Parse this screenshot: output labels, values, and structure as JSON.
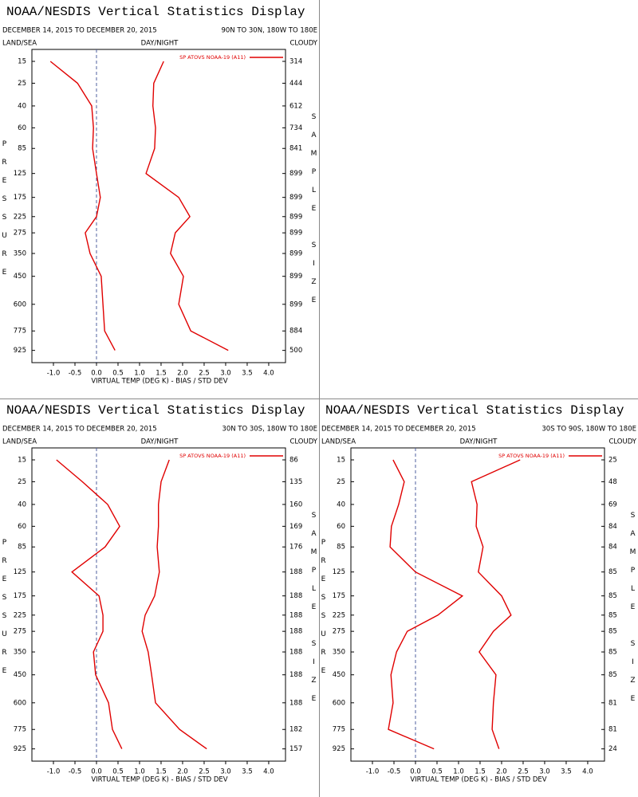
{
  "chart_data": [
    {
      "type": "line",
      "title": "NOAA/NESDIS Vertical Statistics Display",
      "subtitle": "DECEMBER 14, 2015 TO DECEMBER 20, 2015",
      "region": "90N TO 30N, 180W TO 180E",
      "header_left": "LAND/SEA",
      "header_center": "DAY/NIGHT",
      "header_right": "CLOUDY",
      "y_label": "PRESSURE",
      "y2_label": "SAMPLE SIZE",
      "x_label": "VIRTUAL TEMP (DEG K) - BIAS / STD DEV",
      "legend_label": "SP ATOVS NOAA-19 (A11)",
      "y": [
        15,
        25,
        40,
        60,
        85,
        125,
        175,
        225,
        275,
        350,
        450,
        600,
        775,
        925
      ],
      "ylim": [
        1030,
        11
      ],
      "sample_size": [
        314,
        444,
        612,
        734,
        841,
        899,
        899,
        899,
        899,
        899,
        899,
        899,
        884,
        500
      ],
      "series": [
        {
          "color": "#e00000",
          "values": [
            -1.07,
            -0.44,
            -0.11,
            -0.07,
            -0.09,
            0.0,
            0.09,
            0.0,
            -0.26,
            -0.15,
            0.11,
            0.15,
            0.19,
            0.43
          ]
        },
        {
          "color": "#e00000",
          "values": [
            1.56,
            1.33,
            1.31,
            1.37,
            1.35,
            1.15,
            1.91,
            2.17,
            1.83,
            1.72,
            2.02,
            1.91,
            2.19,
            3.06
          ]
        }
      ],
      "xlim": [
        -1.5,
        4.39
      ],
      "xticks": [
        {
          "value": -1,
          "label": "-1.0"
        },
        -0.5,
        {
          "value": 0,
          "label": "0.0"
        },
        0.5,
        {
          "value": 1,
          "label": "1.0"
        },
        1.5,
        {
          "value": 2,
          "label": "2.0"
        },
        2.5,
        {
          "value": 3,
          "label": "3.0"
        },
        3.5,
        {
          "value": 4,
          "label": "4.0"
        }
      ]
    },
    {
      "type": "line",
      "title": "NOAA/NESDIS Vertical Statistics Display",
      "subtitle": "DECEMBER 14, 2015 TO DECEMBER 20, 2015",
      "region": "30N TO 30S, 180W TO 180E",
      "header_left": "LAND/SEA",
      "header_center": "DAY/NIGHT",
      "header_right": "CLOUDY",
      "y_label": "PRESSURE",
      "y2_label": "SAMPLE SIZE",
      "x_label": "VIRTUAL TEMP (DEG K) - BIAS / STD DEV",
      "legend_label": "SP ATOVS NOAA-19 (A11)",
      "y": [
        15,
        25,
        40,
        60,
        85,
        125,
        175,
        225,
        275,
        350,
        450,
        600,
        775,
        925
      ],
      "ylim": [
        1030,
        11
      ],
      "sample_size": [
        86,
        135,
        160,
        169,
        176,
        188,
        188,
        188,
        188,
        188,
        188,
        188,
        182,
        157
      ],
      "series": [
        {
          "color": "#e00000",
          "values": [
            -0.93,
            -0.33,
            0.26,
            0.54,
            0.2,
            -0.57,
            0.06,
            0.15,
            0.15,
            -0.07,
            -0.02,
            0.28,
            0.37,
            0.59
          ]
        },
        {
          "color": "#e00000",
          "values": [
            1.69,
            1.5,
            1.44,
            1.44,
            1.41,
            1.46,
            1.35,
            1.13,
            1.06,
            1.2,
            1.28,
            1.37,
            1.93,
            2.56
          ]
        }
      ],
      "xlim": [
        -1.5,
        4.39
      ],
      "xticks": [
        {
          "value": -1,
          "label": "-1.0"
        },
        -0.5,
        {
          "value": 0,
          "label": "0.0"
        },
        0.5,
        {
          "value": 1,
          "label": "1.0"
        },
        1.5,
        {
          "value": 2,
          "label": "2.0"
        },
        2.5,
        {
          "value": 3,
          "label": "3.0"
        },
        3.5,
        {
          "value": 4,
          "label": "4.0"
        }
      ]
    },
    {
      "type": "line",
      "title": "NOAA/NESDIS Vertical Statistics Display",
      "subtitle": "DECEMBER 14, 2015 TO DECEMBER 20, 2015",
      "region": "30S TO 90S, 180W TO 180E",
      "header_left": "LAND/SEA",
      "header_center": "DAY/NIGHT",
      "header_right": "CLOUDY",
      "y_label": "PRESSURE",
      "y2_label": "SAMPLE SIZE",
      "x_label": "VIRTUAL TEMP (DEG K) - BIAS / STD DEV",
      "legend_label": "SP ATOVS NOAA-19 (A11)",
      "y": [
        15,
        25,
        40,
        60,
        85,
        125,
        175,
        225,
        275,
        350,
        450,
        600,
        775,
        925
      ],
      "ylim": [
        1030,
        11
      ],
      "sample_size": [
        25,
        48,
        69,
        84,
        84,
        85,
        85,
        85,
        85,
        85,
        85,
        81,
        81,
        24
      ],
      "series": [
        {
          "color": "#e00000",
          "values": [
            -0.52,
            -0.26,
            -0.39,
            -0.56,
            -0.59,
            0.0,
            1.09,
            0.52,
            -0.19,
            -0.44,
            -0.57,
            -0.52,
            -0.63,
            0.43
          ]
        },
        {
          "color": "#e00000",
          "values": [
            2.43,
            1.3,
            1.43,
            1.41,
            1.57,
            1.46,
            2.0,
            2.22,
            1.81,
            1.48,
            1.87,
            1.81,
            1.78,
            1.94
          ]
        }
      ],
      "xlim": [
        -1.5,
        4.39
      ],
      "xticks": [
        {
          "value": -1,
          "label": "-1.0"
        },
        -0.5,
        {
          "value": 0,
          "label": "0.0"
        },
        0.5,
        {
          "value": 1,
          "label": "1.0"
        },
        1.5,
        {
          "value": 2,
          "label": "2.0"
        },
        2.5,
        {
          "value": 3,
          "label": "3.0"
        },
        3.5,
        {
          "value": 4,
          "label": "4.0"
        }
      ]
    }
  ]
}
